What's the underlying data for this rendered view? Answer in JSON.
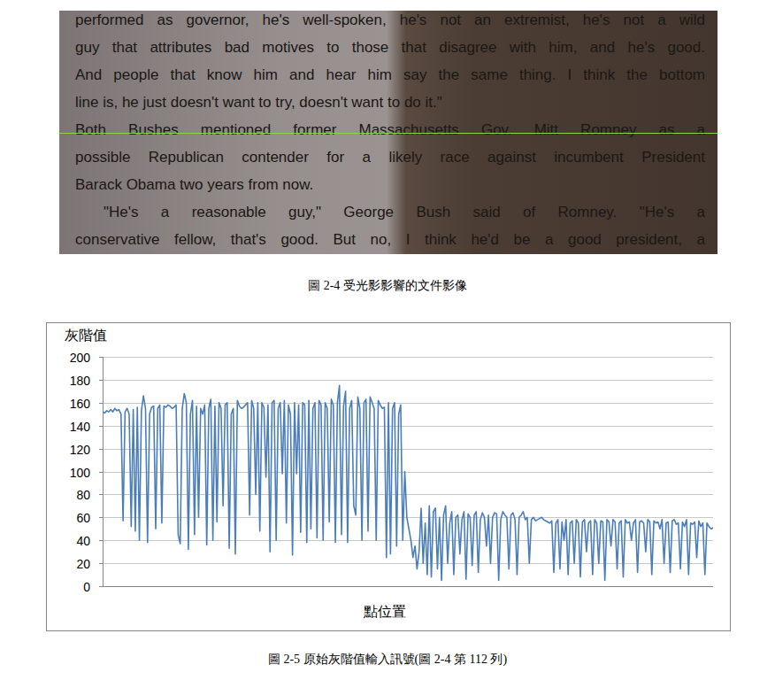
{
  "figure_image": {
    "lines": [
      "performed as governor, he's well-spoken, he's not an extremist, he's not a wild",
      "guy that attributes bad motives to those that disagree with him, and he's good.",
      "And people that know him and hear him say the same thing. I think the bottom",
      "line is, he just doesn't want to try, doesn't want to do it.\"",
      "Both Bushes mentioned former Massachusetts Gov. Mitt Romney as a",
      "possible Republican contender for a likely race against incumbent President",
      "Barack Obama two years from now.",
      "\"He's a reasonable guy,\" George Bush said of Romney. \"He's a",
      "conservative fellow, that's good. But no, I think he'd be a good president, a"
    ]
  },
  "figure_caption": "圖 2-4 受光影影響的文件影像",
  "chart_data": {
    "type": "line",
    "y_label": "灰階值",
    "x_label": "點位置",
    "color": "#4a7ebb",
    "grid": true,
    "tick_labels": "y",
    "xlim": [
      0,
      299
    ],
    "ylim": [
      0,
      200
    ],
    "yticks": [
      0,
      20,
      40,
      60,
      80,
      100,
      120,
      140,
      160,
      180,
      200
    ],
    "values": [
      152,
      151,
      153,
      152,
      154,
      152,
      155,
      153,
      154,
      150,
      57,
      152,
      155,
      150,
      52,
      154,
      48,
      156,
      40,
      153,
      166,
      155,
      38,
      150,
      156,
      157,
      50,
      155,
      158,
      55,
      157,
      156,
      158,
      157,
      155,
      156,
      158,
      45,
      37,
      155,
      168,
      160,
      32,
      150,
      162,
      45,
      157,
      60,
      155,
      150,
      158,
      36,
      155,
      163,
      40,
      157,
      56,
      160,
      155,
      70,
      158,
      160,
      33,
      150,
      155,
      28,
      162,
      157,
      155,
      156,
      158,
      160,
      62,
      162,
      155,
      80,
      160,
      48,
      160,
      156,
      95,
      158,
      30,
      160,
      162,
      40,
      155,
      160,
      98,
      162,
      55,
      158,
      150,
      27,
      160,
      98,
      158,
      47,
      160,
      158,
      38,
      162,
      50,
      155,
      160,
      42,
      162,
      158,
      40,
      160,
      155,
      56,
      163,
      158,
      38,
      160,
      175,
      45,
      157,
      170,
      38,
      155,
      162,
      70,
      62,
      165,
      155,
      40,
      160,
      163,
      48,
      165,
      160,
      155,
      40,
      162,
      158,
      155,
      156,
      25,
      160,
      28,
      155,
      160,
      35,
      150,
      158,
      40,
      100,
      60,
      50,
      40,
      25,
      35,
      15,
      30,
      68,
      20,
      55,
      10,
      70,
      8,
      65,
      68,
      15,
      60,
      5,
      62,
      70,
      20,
      55,
      65,
      10,
      60,
      62,
      28,
      58,
      65,
      6,
      63,
      60,
      18,
      62,
      65,
      12,
      58,
      64,
      60,
      35,
      62,
      20,
      60,
      64,
      63,
      5,
      58,
      65,
      62,
      60,
      15,
      62,
      64,
      58,
      10,
      60,
      62,
      65,
      58,
      60,
      20,
      58,
      60,
      57,
      58,
      59,
      60,
      58,
      57,
      56,
      55,
      57,
      12,
      55,
      58,
      15,
      56,
      40,
      58,
      10,
      55,
      57,
      20,
      58,
      55,
      8,
      56,
      58,
      30,
      55,
      57,
      10,
      58,
      55,
      20,
      57,
      56,
      5,
      58,
      56,
      35,
      58,
      56,
      15,
      55,
      57,
      8,
      58,
      55,
      56,
      40,
      55,
      58,
      12,
      56,
      57,
      55,
      30,
      58,
      56,
      10,
      57,
      55,
      56,
      50,
      58,
      20,
      55,
      56,
      12,
      57,
      58,
      54,
      55,
      15,
      56,
      52,
      58,
      10,
      55,
      54,
      56,
      25,
      57,
      52,
      55,
      10,
      55,
      52,
      50,
      51
    ]
  },
  "chart_caption": "圖 2-5 原始灰階值輸入訊號(圖 2-4 第 112 列)"
}
